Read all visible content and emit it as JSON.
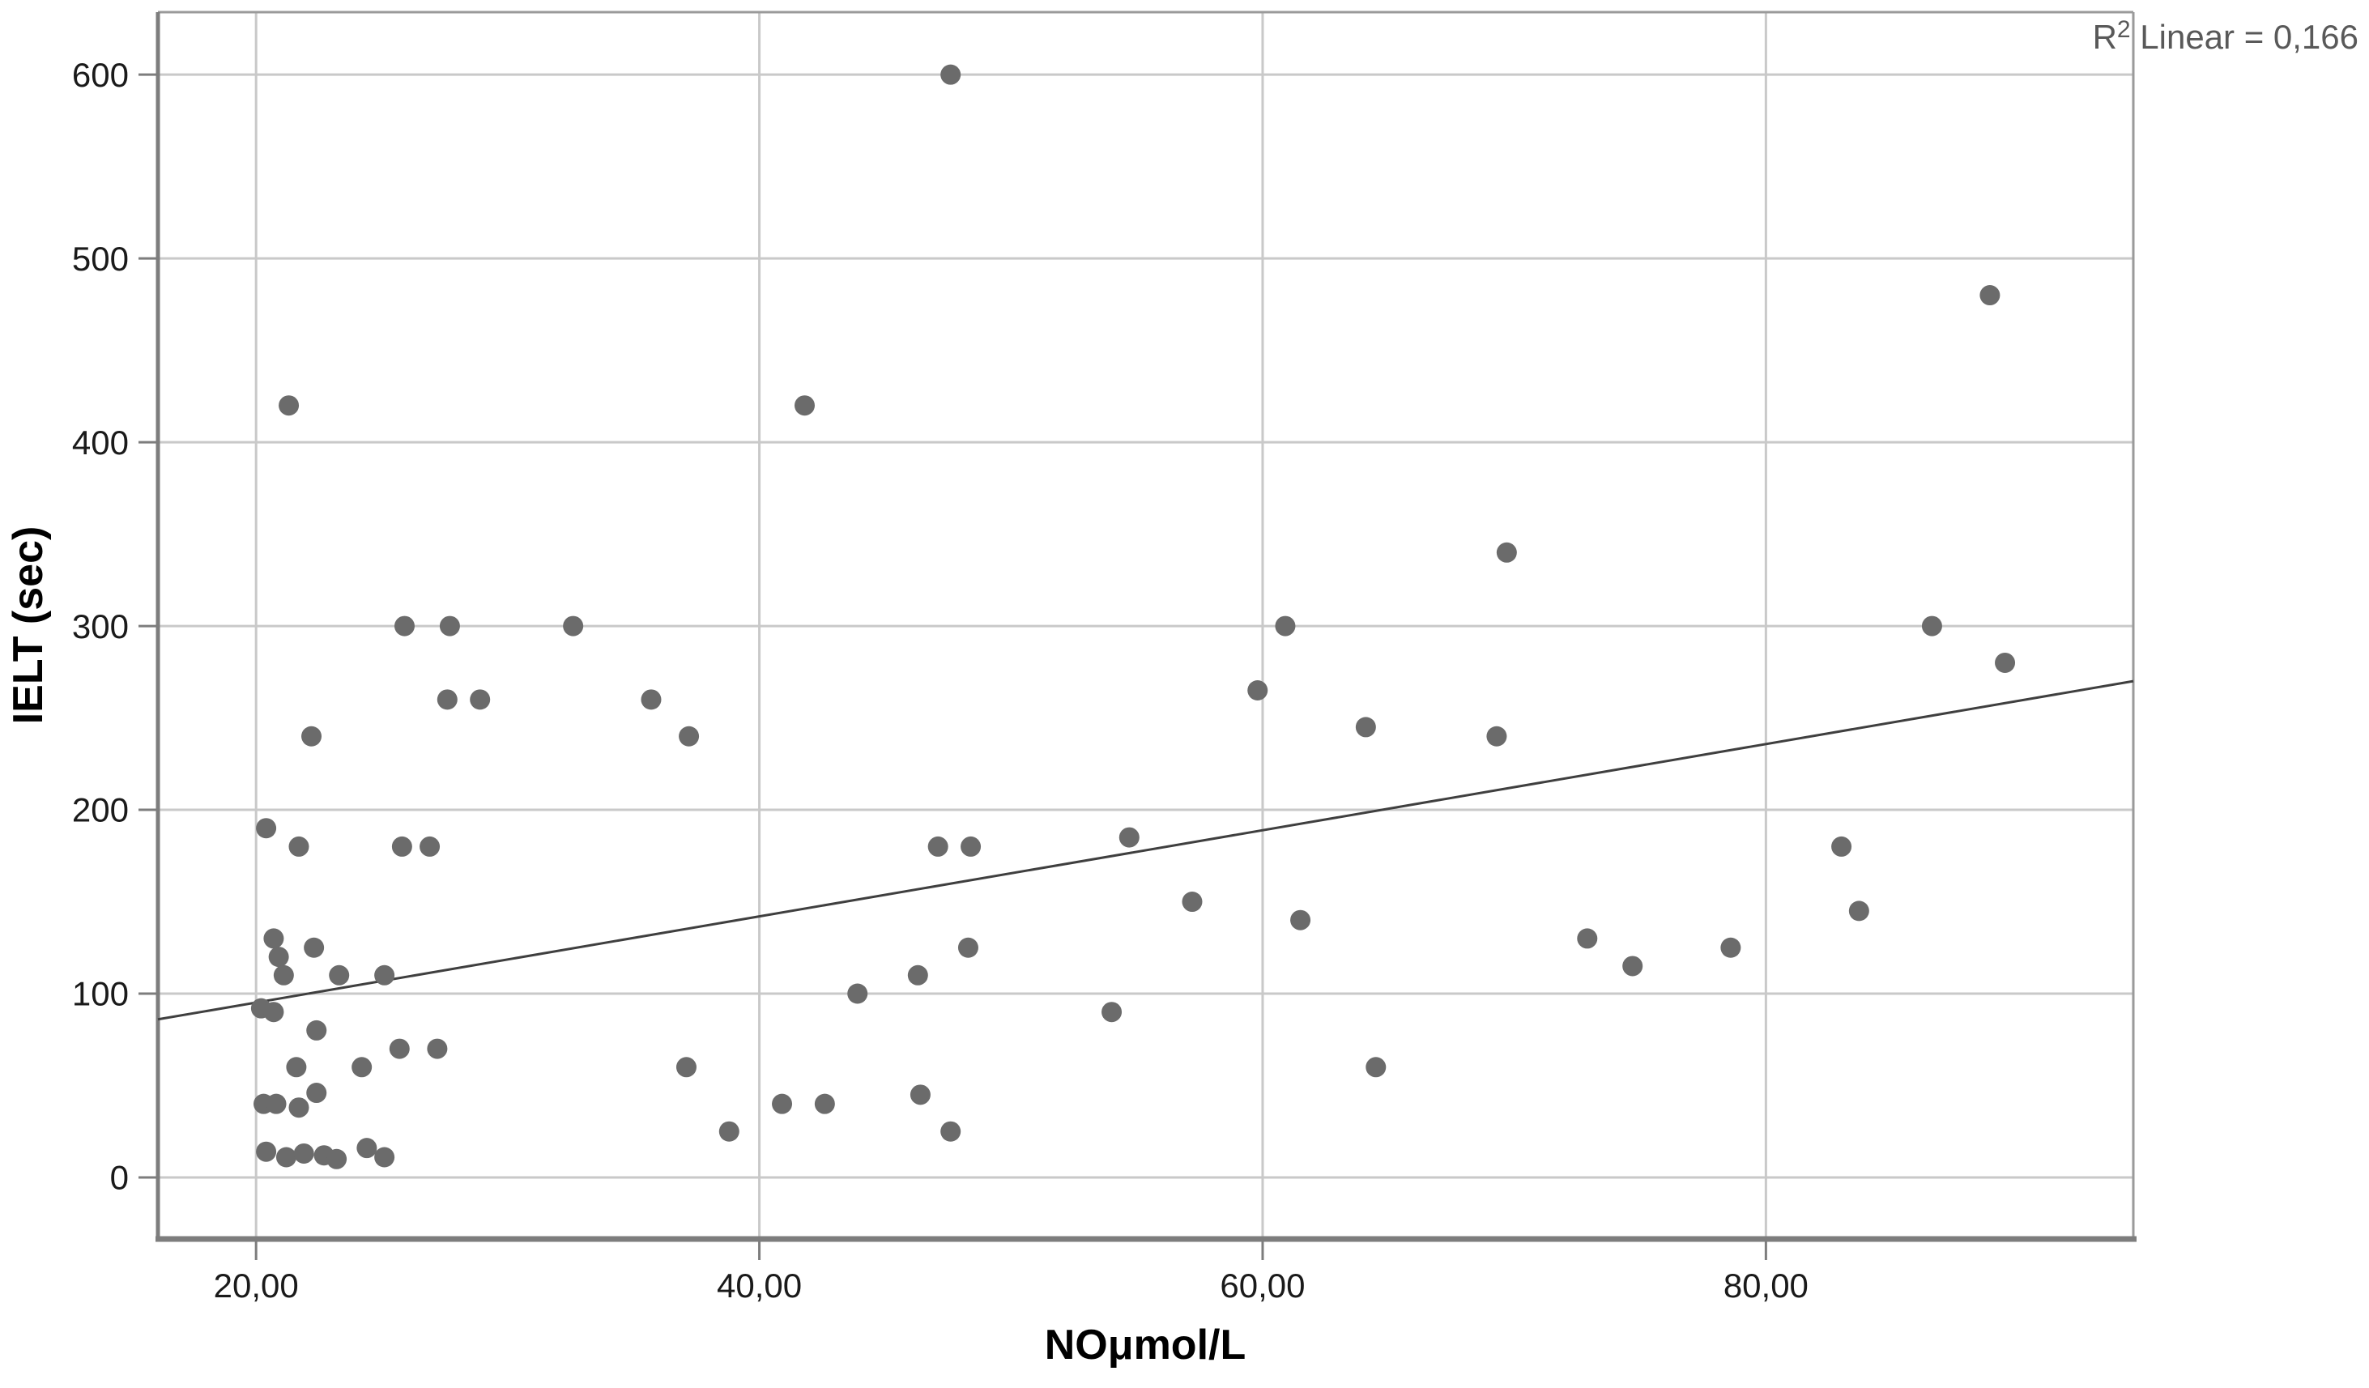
{
  "chart_data": {
    "type": "scatter",
    "title": "",
    "xlabel": "NOμmol/L",
    "ylabel": "IELT (sec)",
    "annotation": {
      "r2_prefix": "R",
      "r2_sup": "2",
      "r2_rest": " Linear = 0,166"
    },
    "xlim": [
      16.1,
      94.6
    ],
    "ylim": [
      -33.5,
      634
    ],
    "grid": true,
    "legend_position": "none",
    "x_ticks": [
      {
        "value": 20,
        "label": "20,00"
      },
      {
        "value": 40,
        "label": "40,00"
      },
      {
        "value": 60,
        "label": "60,00"
      },
      {
        "value": 80,
        "label": "80,00"
      }
    ],
    "y_ticks": [
      {
        "value": 0,
        "label": "0"
      },
      {
        "value": 100,
        "label": "100"
      },
      {
        "value": 200,
        "label": "200"
      },
      {
        "value": 300,
        "label": "300"
      },
      {
        "value": 400,
        "label": "400"
      },
      {
        "value": 500,
        "label": "500"
      },
      {
        "value": 600,
        "label": "600"
      }
    ],
    "points": [
      [
        20.4,
        190
      ],
      [
        21.7,
        180
      ],
      [
        25.8,
        180
      ],
      [
        26.9,
        180
      ],
      [
        21.3,
        420
      ],
      [
        22.2,
        240
      ],
      [
        25.9,
        300
      ],
      [
        27.7,
        300
      ],
      [
        32.6,
        300
      ],
      [
        27.6,
        260
      ],
      [
        28.9,
        260
      ],
      [
        35.7,
        260
      ],
      [
        37.2,
        240
      ],
      [
        20.7,
        130
      ],
      [
        20.9,
        120
      ],
      [
        21.1,
        110
      ],
      [
        22.3,
        125
      ],
      [
        23.3,
        110
      ],
      [
        25.1,
        110
      ],
      [
        20.2,
        92
      ],
      [
        20.7,
        90
      ],
      [
        22.4,
        80
      ],
      [
        25.7,
        70
      ],
      [
        27.2,
        70
      ],
      [
        21.6,
        60
      ],
      [
        24.2,
        60
      ],
      [
        22.4,
        46
      ],
      [
        20.3,
        40
      ],
      [
        20.8,
        40
      ],
      [
        21.7,
        38
      ],
      [
        20.4,
        14
      ],
      [
        21.2,
        11
      ],
      [
        21.9,
        13
      ],
      [
        22.7,
        12
      ],
      [
        23.2,
        10
      ],
      [
        24.4,
        16
      ],
      [
        25.1,
        11
      ],
      [
        37.1,
        60
      ],
      [
        38.8,
        25
      ],
      [
        40.9,
        40
      ],
      [
        42.6,
        40
      ],
      [
        41.8,
        420
      ],
      [
        43.9,
        100
      ],
      [
        46.4,
        45
      ],
      [
        47.6,
        25
      ],
      [
        46.3,
        110
      ],
      [
        48.3,
        125
      ],
      [
        47.1,
        180
      ],
      [
        48.4,
        180
      ],
      [
        47.6,
        600
      ],
      [
        54.0,
        90
      ],
      [
        54.7,
        185
      ],
      [
        57.2,
        150
      ],
      [
        59.8,
        265
      ],
      [
        60.9,
        300
      ],
      [
        61.5,
        140
      ],
      [
        64.1,
        245
      ],
      [
        64.5,
        60
      ],
      [
        69.3,
        240
      ],
      [
        69.7,
        340
      ],
      [
        72.9,
        130
      ],
      [
        74.7,
        115
      ],
      [
        78.6,
        125
      ],
      [
        83.0,
        180
      ],
      [
        83.7,
        145
      ],
      [
        86.6,
        300
      ],
      [
        88.9,
        480
      ],
      [
        89.5,
        280
      ]
    ],
    "regression_line": {
      "x1": 16.1,
      "y1": 86,
      "x2": 94.6,
      "y2": 270
    },
    "colors": {
      "point": "#6b6b6b",
      "grid": "#c9c9c9",
      "frame": "#9a9a9a",
      "axis": "#7d7d7d",
      "fit_line": "#3f3f3f",
      "annotation": "#595959",
      "text": "#1a1a1a"
    }
  }
}
